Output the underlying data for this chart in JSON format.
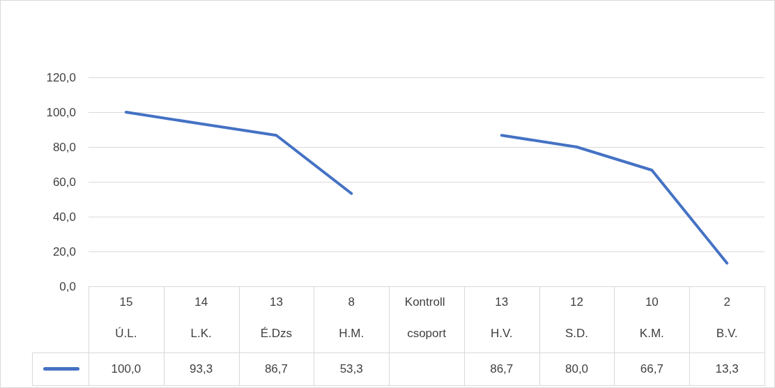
{
  "chart_data": {
    "type": "line",
    "categories": [
      "15\nÚ.L.",
      "14\nL.K.",
      "13\nÉ.Dzs",
      "8\nH.M.",
      "Kontroll csoport",
      "13\nH.V.",
      "12\nS.D.",
      "10\nK.M.",
      "2\nB.V."
    ],
    "series": [
      {
        "color": "#4472c4",
        "values": [
          100.0,
          93.3,
          86.7,
          53.3,
          null,
          86.7,
          80.0,
          66.7,
          13.3
        ],
        "value_labels": [
          "100,0",
          "93,3",
          "86,7",
          "53,3",
          null,
          "86,7",
          "80,0",
          "66,7",
          "13,3"
        ]
      }
    ],
    "ylim": [
      0,
      120
    ],
    "yticks": [
      {
        "value": 0,
        "label": "0,0"
      },
      {
        "value": 20,
        "label": "20,0"
      },
      {
        "value": 40,
        "label": "40,0"
      },
      {
        "value": 60,
        "label": "60,0"
      },
      {
        "value": 80,
        "label": "80,0"
      },
      {
        "value": 100,
        "label": "100,0"
      },
      {
        "value": 120,
        "label": "120,0"
      }
    ],
    "grid": "y",
    "marker": "none",
    "line_style": "solid"
  }
}
